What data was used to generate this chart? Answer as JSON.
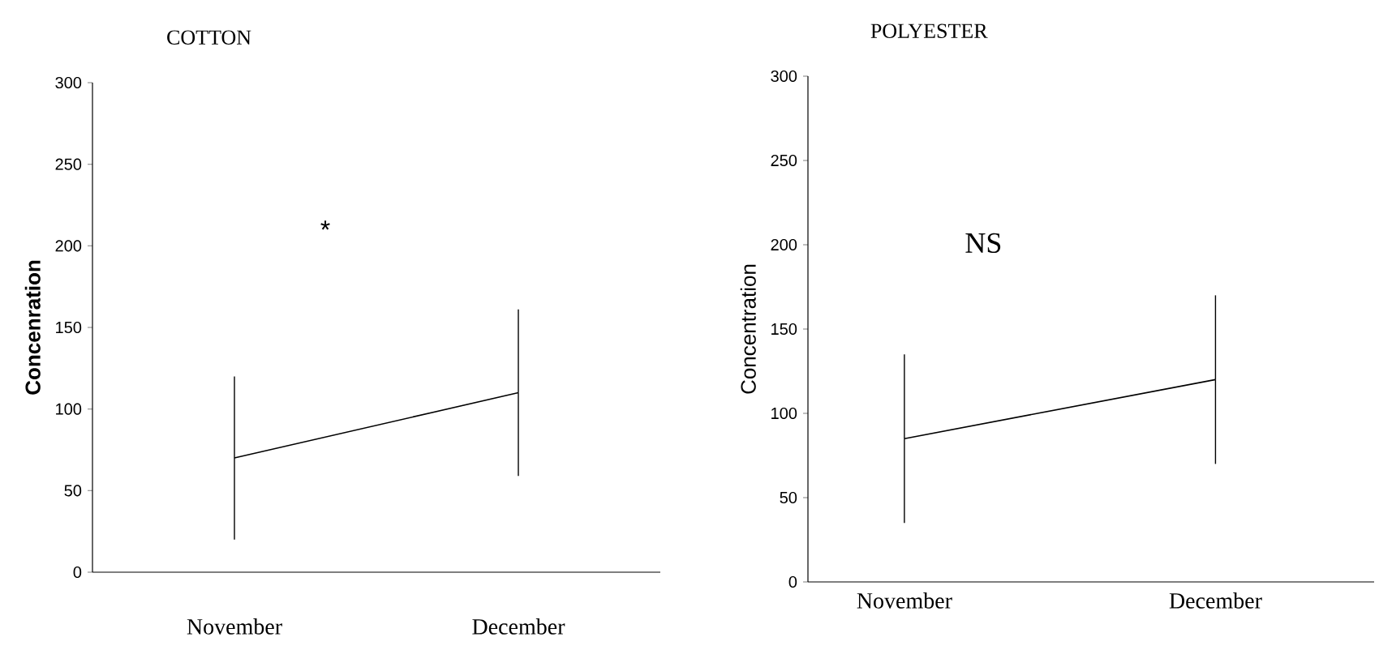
{
  "chart_data": [
    {
      "type": "line",
      "title": "COTTON",
      "ylabel": "Concenration",
      "categories": [
        "November",
        "December"
      ],
      "series": [
        {
          "color": "#000000",
          "values": [
            70,
            110
          ],
          "errors": [
            50,
            51
          ]
        }
      ],
      "ylim": [
        0,
        300
      ],
      "yticks": [
        0,
        50,
        100,
        150,
        200,
        250,
        300
      ],
      "annotations": [
        "*"
      ]
    },
    {
      "type": "line",
      "title": "POLYESTER",
      "ylabel": "Concentration",
      "categories": [
        "November",
        "December"
      ],
      "series": [
        {
          "color": "#000000",
          "values": [
            85,
            120
          ],
          "errors": [
            50,
            50
          ]
        }
      ],
      "ylim": [
        0,
        300
      ],
      "yticks": [
        0,
        50,
        100,
        150,
        200,
        250,
        300
      ],
      "annotations": [
        "NS"
      ]
    }
  ]
}
